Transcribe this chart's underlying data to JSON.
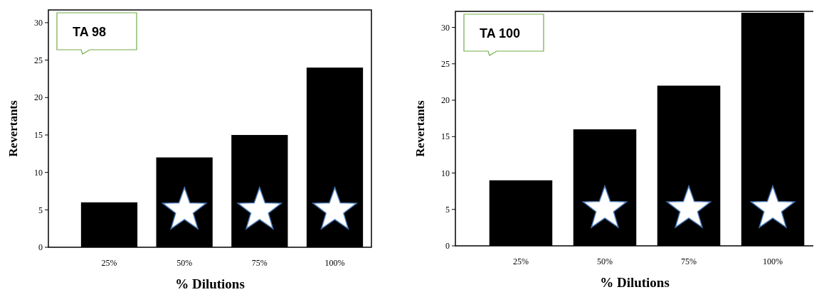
{
  "chart_data": [
    {
      "type": "bar",
      "title": "TA 98",
      "xlabel": "% Dilutions",
      "ylabel": "Revertants",
      "categories": [
        "25%",
        "50%",
        "75%",
        "100%"
      ],
      "values": [
        6,
        12,
        15,
        24
      ],
      "color": "#000000",
      "ylim": [
        0,
        31.7
      ],
      "yticks": [
        0,
        5,
        10,
        15,
        20,
        25,
        30
      ],
      "grid": false
    },
    {
      "type": "bar",
      "title": "TA 100",
      "xlabel": "% Dilutions",
      "ylabel": "Revertants",
      "categories": [
        "25%",
        "50%",
        "75%",
        "100%"
      ],
      "values": [
        9,
        16,
        22,
        32
      ],
      "color": "#000000",
      "ylim": [
        0,
        32.2
      ],
      "yticks": [
        0,
        5,
        10,
        15,
        20,
        25,
        30
      ],
      "grid": false
    }
  ]
}
